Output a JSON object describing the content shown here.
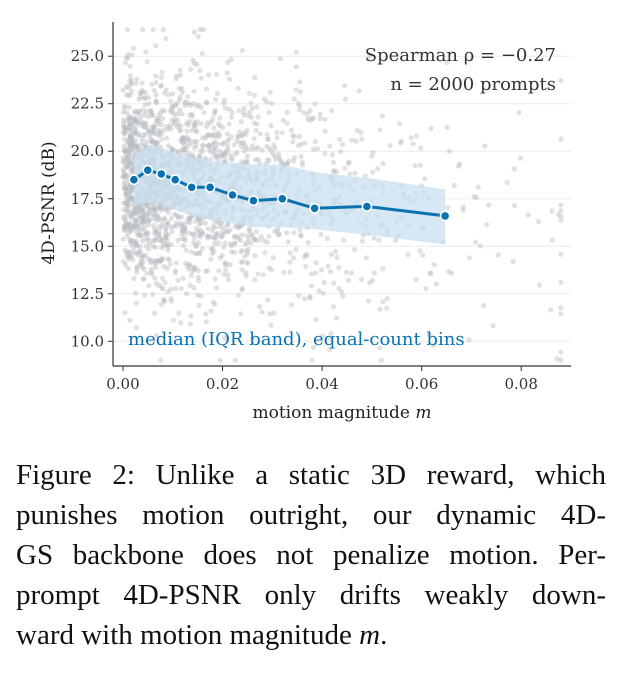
{
  "chart_data": {
    "type": "scatter",
    "xlabel_main": "motion magnitude ",
    "xlabel_var": "m",
    "ylabel": "4D-PSNR (dB)",
    "xlim": [
      -0.002,
      0.09
    ],
    "ylim": [
      8.7,
      26.8
    ],
    "xticks": [
      0.0,
      0.02,
      0.04,
      0.06,
      0.08
    ],
    "xtick_labels": [
      "0.00",
      "0.02",
      "0.04",
      "0.06",
      "0.08"
    ],
    "yticks": [
      10.0,
      12.5,
      15.0,
      17.5,
      20.0,
      22.5,
      25.0
    ],
    "ytick_labels": [
      "10.0",
      "12.5",
      "15.0",
      "17.5",
      "20.0",
      "22.5",
      "25.0"
    ],
    "grid": "horizontal",
    "annotation_line1": "Spearman ρ = −0.27",
    "annotation_line2": "n = 2000 prompts",
    "legend_label": "median (IQR band), equal-count bins",
    "colors": {
      "median": "#0a72b0",
      "band": "#c9dff0",
      "scatter": "#b8bcc2"
    },
    "scatter_point_count": 2000,
    "median_series": {
      "name": "median (IQR band), equal-count bins",
      "x": [
        0.0022,
        0.005,
        0.0077,
        0.0105,
        0.0138,
        0.0175,
        0.022,
        0.0262,
        0.032,
        0.0385,
        0.049,
        0.0647
      ],
      "y": [
        18.5,
        19.0,
        18.8,
        18.5,
        18.1,
        18.1,
        17.7,
        17.4,
        17.5,
        17.0,
        17.1,
        16.6
      ]
    },
    "iqr_band": {
      "x": [
        0.0022,
        0.005,
        0.0077,
        0.0105,
        0.0138,
        0.0175,
        0.022,
        0.0262,
        0.032,
        0.0385,
        0.049,
        0.0647
      ],
      "q1": [
        17.1,
        17.3,
        17.2,
        16.9,
        16.6,
        16.4,
        16.2,
        16.0,
        16.0,
        15.9,
        15.6,
        15.1
      ],
      "q3": [
        19.8,
        20.3,
        20.2,
        19.9,
        19.7,
        19.5,
        19.4,
        19.3,
        19.3,
        18.9,
        18.6,
        18.0
      ]
    }
  },
  "caption": {
    "lines": [
      "Figure 2: Unlike a static 3D reward, which",
      "punishes motion outright, our dynamic 4D-",
      "GS backbone does not penalize motion. Per-",
      "prompt 4D-PSNR only drifts weakly down-"
    ],
    "last_line_text": "ward with motion magnitude ",
    "last_line_var": "m",
    "last_line_end": "."
  }
}
